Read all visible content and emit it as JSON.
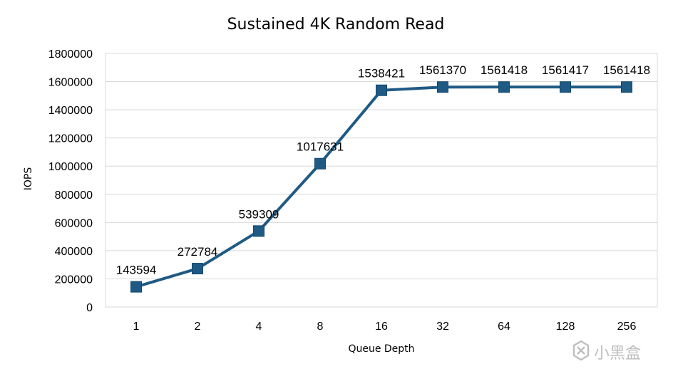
{
  "chart_data": {
    "type": "line",
    "title": "Sustained 4K Random Read",
    "xlabel": "Queue Depth",
    "ylabel": "IOPS",
    "categories": [
      "1",
      "2",
      "4",
      "8",
      "16",
      "32",
      "64",
      "128",
      "256"
    ],
    "series": [
      {
        "values": [
          143594,
          272784,
          539309,
          1017631,
          1538421,
          1561370,
          1561418,
          1561417,
          1561418
        ],
        "color": "#1f5a85"
      }
    ],
    "data_labels": [
      "143594",
      "272784",
      "539309",
      "1017631",
      "1538421",
      "1561370",
      "1561418",
      "1561417",
      "1561418"
    ],
    "ylim": [
      0,
      1800000
    ],
    "yticks": [
      0,
      200000,
      400000,
      600000,
      800000,
      1000000,
      1200000,
      1400000,
      1600000,
      1800000
    ],
    "ytick_labels": [
      "0",
      "200000",
      "400000",
      "600000",
      "800000",
      "1000000",
      "1200000",
      "1400000",
      "1600000",
      "1800000"
    ],
    "grid": true,
    "marker": "square",
    "legend": "none"
  },
  "watermark": {
    "text": "小黑盒",
    "icon": "xiaoheihe-logo-icon",
    "color": "#b8b8b8"
  }
}
